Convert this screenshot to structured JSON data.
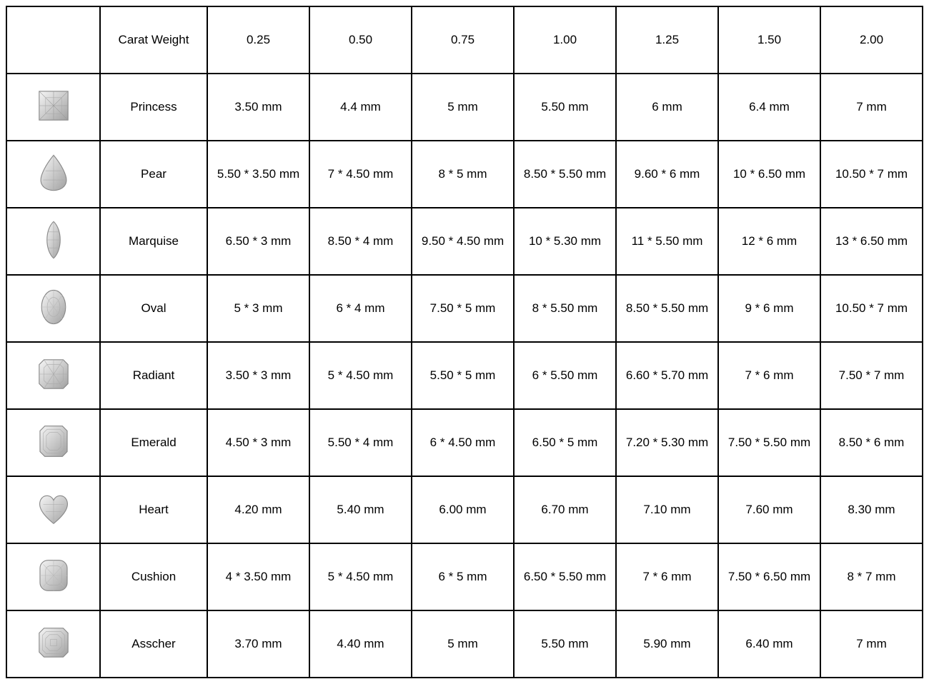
{
  "table": {
    "border_color": "#000000",
    "background_color": "#ffffff",
    "text_color": "#000000",
    "font_size_pt": 13,
    "header": {
      "first_cell": "",
      "label_cell": "Carat Weight",
      "carat_weights": [
        "0.25",
        "0.50",
        "0.75",
        "1.00",
        "1.25",
        "1.50",
        "2.00"
      ]
    },
    "rows": [
      {
        "shape": "Princess",
        "icon": "princess-icon",
        "sizes": [
          "3.50 mm",
          "4.4 mm",
          "5 mm",
          "5.50 mm",
          "6 mm",
          "6.4 mm",
          "7 mm"
        ]
      },
      {
        "shape": "Pear",
        "icon": "pear-icon",
        "sizes": [
          "5.50 * 3.50 mm",
          "7 * 4.50 mm",
          "8 * 5 mm",
          "8.50 * 5.50 mm",
          "9.60 * 6 mm",
          "10 * 6.50 mm",
          "10.50 * 7 mm"
        ]
      },
      {
        "shape": "Marquise",
        "icon": "marquise-icon",
        "sizes": [
          "6.50 * 3 mm",
          "8.50 * 4 mm",
          "9.50 * 4.50 mm",
          "10 * 5.30 mm",
          "11 * 5.50 mm",
          "12 * 6 mm",
          "13 * 6.50 mm"
        ]
      },
      {
        "shape": "Oval",
        "icon": "oval-icon",
        "sizes": [
          "5 * 3 mm",
          "6 * 4 mm",
          "7.50 * 5 mm",
          "8 * 5.50 mm",
          "8.50 * 5.50 mm",
          "9 * 6 mm",
          "10.50 * 7 mm"
        ]
      },
      {
        "shape": "Radiant",
        "icon": "radiant-icon",
        "sizes": [
          "3.50 * 3 mm",
          "5 * 4.50 mm",
          "5.50 * 5 mm",
          "6 * 5.50 mm",
          "6.60 * 5.70 mm",
          "7 * 6 mm",
          "7.50 * 7 mm"
        ]
      },
      {
        "shape": "Emerald",
        "icon": "emerald-icon",
        "sizes": [
          "4.50 * 3 mm",
          "5.50 * 4 mm",
          "6 * 4.50 mm",
          "6.50 * 5 mm",
          "7.20 * 5.30 mm",
          "7.50 * 5.50 mm",
          "8.50 * 6 mm"
        ]
      },
      {
        "shape": "Heart",
        "icon": "heart-icon",
        "sizes": [
          "4.20 mm",
          "5.40 mm",
          "6.00 mm",
          "6.70 mm",
          "7.10 mm",
          "7.60 mm",
          "8.30 mm"
        ]
      },
      {
        "shape": "Cushion",
        "icon": "cushion-icon",
        "sizes": [
          "4 * 3.50 mm",
          "5 * 4.50 mm",
          "6 * 5 mm",
          "6.50 * 5.50 mm",
          "7 * 6 mm",
          "7.50 * 6.50 mm",
          "8 * 7 mm"
        ]
      },
      {
        "shape": "Asscher",
        "icon": "asscher-icon",
        "sizes": [
          "3.70 mm",
          "4.40 mm",
          "5 mm",
          "5.50 mm",
          "5.90 mm",
          "6.40 mm",
          "7 mm"
        ]
      }
    ],
    "icon_palette": {
      "stroke": "#9a9a9a",
      "fill_light": "#e8e8e8",
      "fill_mid": "#c8c8c8",
      "fill_dark": "#a8a8a8"
    }
  }
}
